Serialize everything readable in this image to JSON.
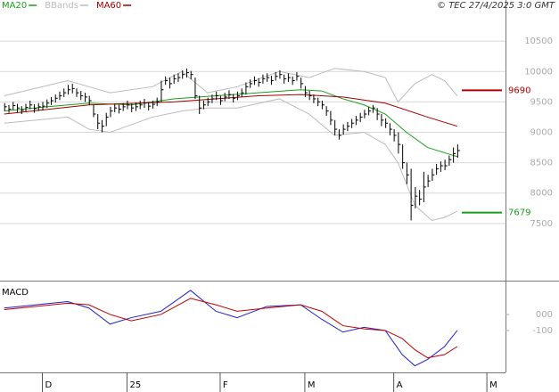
{
  "header": {
    "credit": "© TEC 27/4/2025 3:0 GMT"
  },
  "chart_data": [
    {
      "type": "ohlc",
      "xlim": [
        -1,
        118.4
      ],
      "ylim": [
        6560,
        11176
      ],
      "yticks": [
        7500,
        8000,
        8500,
        9000,
        9500,
        10000,
        10500
      ],
      "grid": true,
      "bars": {
        "color": "#000000",
        "high": [
          9480,
          9450,
          9500,
          9470,
          9430,
          9470,
          9520,
          9460,
          9480,
          9500,
          9540,
          9580,
          9620,
          9670,
          9720,
          9780,
          9800,
          9720,
          9680,
          9650,
          9600,
          9450,
          9300,
          9200,
          9320,
          9420,
          9470,
          9450,
          9480,
          9520,
          9470,
          9490,
          9520,
          9550,
          9500,
          9520,
          9570,
          9850,
          9920,
          9900,
          9950,
          9970,
          10020,
          10050,
          10010,
          9900,
          9600,
          9520,
          9570,
          9620,
          9670,
          9600,
          9650,
          9690,
          9630,
          9670,
          9720,
          9820,
          9870,
          9920,
          9890,
          9950,
          9970,
          9930,
          9990,
          10020,
          9950,
          9970,
          9920,
          9990,
          9900,
          9760,
          9680,
          9620,
          9570,
          9520,
          9430,
          9350,
          9200,
          9050,
          9130,
          9170,
          9220,
          9270,
          9320,
          9370,
          9420,
          9450,
          9400,
          9300,
          9230,
          9150,
          9050,
          9000,
          8800,
          8500,
          8400,
          8100,
          8050,
          8350,
          8300,
          8400,
          8480,
          8520,
          8550,
          8620,
          8750,
          8800
        ],
        "low": [
          9350,
          9320,
          9370,
          9330,
          9300,
          9340,
          9380,
          9320,
          9350,
          9360,
          9400,
          9450,
          9490,
          9530,
          9580,
          9620,
          9640,
          9580,
          9530,
          9500,
          9450,
          9250,
          9050,
          9000,
          9100,
          9250,
          9330,
          9310,
          9350,
          9380,
          9330,
          9350,
          9380,
          9400,
          9360,
          9390,
          9430,
          9500,
          9780,
          9720,
          9800,
          9830,
          9880,
          9900,
          9870,
          9550,
          9300,
          9380,
          9430,
          9480,
          9530,
          9450,
          9510,
          9550,
          9490,
          9530,
          9580,
          9620,
          9730,
          9780,
          9750,
          9800,
          9830,
          9780,
          9850,
          9880,
          9800,
          9830,
          9780,
          9850,
          9720,
          9580,
          9530,
          9480,
          9430,
          9380,
          9270,
          9120,
          8950,
          8880,
          8960,
          9020,
          9070,
          9120,
          9170,
          9230,
          9280,
          9320,
          9200,
          9100,
          9070,
          8950,
          8850,
          8650,
          8400,
          8150,
          7550,
          7750,
          7800,
          7850,
          8100,
          8200,
          8300,
          8350,
          8380,
          8450,
          8500,
          8580
        ],
        "close": [
          9420,
          9380,
          9440,
          9400,
          9360,
          9410,
          9450,
          9390,
          9420,
          9430,
          9480,
          9520,
          9560,
          9600,
          9650,
          9700,
          9720,
          9650,
          9600,
          9580,
          9520,
          9300,
          9150,
          9100,
          9250,
          9350,
          9400,
          9380,
          9420,
          9450,
          9400,
          9420,
          9450,
          9480,
          9430,
          9460,
          9500,
          9700,
          9850,
          9800,
          9880,
          9900,
          9950,
          9980,
          9950,
          9600,
          9400,
          9450,
          9500,
          9550,
          9600,
          9520,
          9580,
          9620,
          9560,
          9600,
          9650,
          9750,
          9800,
          9850,
          9820,
          9880,
          9900,
          9850,
          9920,
          9950,
          9880,
          9900,
          9850,
          9920,
          9800,
          9650,
          9600,
          9550,
          9500,
          9450,
          9350,
          9200,
          9050,
          8950,
          9050,
          9100,
          9150,
          9200,
          9250,
          9300,
          9350,
          9400,
          9300,
          9200,
          9150,
          9050,
          8950,
          8800,
          8500,
          8300,
          7800,
          7950,
          7900,
          8100,
          8200,
          8300,
          8400,
          8450,
          8450,
          8550,
          8650,
          8700
        ]
      },
      "series": [
        {
          "name": "MA20",
          "color": "#1a9e1a",
          "x": [
            0,
            10,
            20,
            30,
            40,
            50,
            60,
            70,
            75,
            80,
            85,
            90,
            95,
            100,
            107
          ],
          "values": [
            9350,
            9420,
            9480,
            9450,
            9550,
            9600,
            9650,
            9700,
            9680,
            9550,
            9450,
            9300,
            9000,
            8750,
            8600
          ]
        },
        {
          "name": "BBands",
          "color": "#bbbbbb",
          "x": [
            0,
            15,
            20,
            25,
            35,
            42,
            48,
            55,
            65,
            72,
            78,
            85,
            90,
            93,
            97,
            101,
            104,
            107
          ],
          "upper": [
            9600,
            9850,
            9750,
            9650,
            9750,
            10000,
            9650,
            9750,
            10000,
            9900,
            10050,
            10000,
            9900,
            9500,
            9800,
            9950,
            9850,
            9600
          ],
          "lower": [
            9150,
            9250,
            9050,
            9000,
            9250,
            9350,
            9400,
            9400,
            9550,
            9300,
            8950,
            9000,
            8800,
            8500,
            7800,
            7550,
            7600,
            7700
          ]
        },
        {
          "name": "MA60",
          "color": "#a00000",
          "x": [
            0,
            20,
            40,
            60,
            70,
            80,
            90,
            100,
            107
          ],
          "values": [
            9300,
            9450,
            9500,
            9600,
            9620,
            9580,
            9480,
            9250,
            9100
          ]
        }
      ],
      "annotations": [
        {
          "value": 9690,
          "color": "#b00000"
        },
        {
          "value": 7679,
          "color": "#1a9e1a"
        }
      ]
    },
    {
      "type": "line",
      "title": "MACD",
      "xlim": [
        -1,
        118.4
      ],
      "xticks": [
        {
          "value": 9,
          "label": "D"
        },
        {
          "value": 29,
          "label": "25"
        },
        {
          "value": 51,
          "label": "F"
        },
        {
          "value": 71,
          "label": "M"
        },
        {
          "value": 92,
          "label": "A"
        },
        {
          "value": 114,
          "label": "M"
        }
      ],
      "ylim": [
        -361,
        194
      ],
      "yticks": [
        {
          "value": 0,
          "label": "000"
        },
        -100
      ],
      "series": [
        {
          "color": "#2020c8",
          "x": [
            0,
            15,
            20,
            25,
            30,
            37,
            44,
            50,
            55,
            62,
            70,
            75,
            80,
            85,
            90,
            94,
            97,
            100,
            104,
            107
          ],
          "values": [
            40,
            80,
            40,
            -60,
            -20,
            20,
            150,
            20,
            -20,
            50,
            60,
            -30,
            -110,
            -80,
            -100,
            -250,
            -320,
            -280,
            -200,
            -100
          ]
        },
        {
          "color": "#c00000",
          "x": [
            0,
            15,
            20,
            25,
            30,
            37,
            44,
            50,
            55,
            62,
            70,
            75,
            80,
            85,
            90,
            94,
            97,
            100,
            104,
            107
          ],
          "values": [
            30,
            70,
            60,
            0,
            -40,
            0,
            100,
            60,
            20,
            40,
            60,
            20,
            -70,
            -90,
            -100,
            -150,
            -220,
            -270,
            -250,
            -200
          ]
        }
      ]
    }
  ]
}
